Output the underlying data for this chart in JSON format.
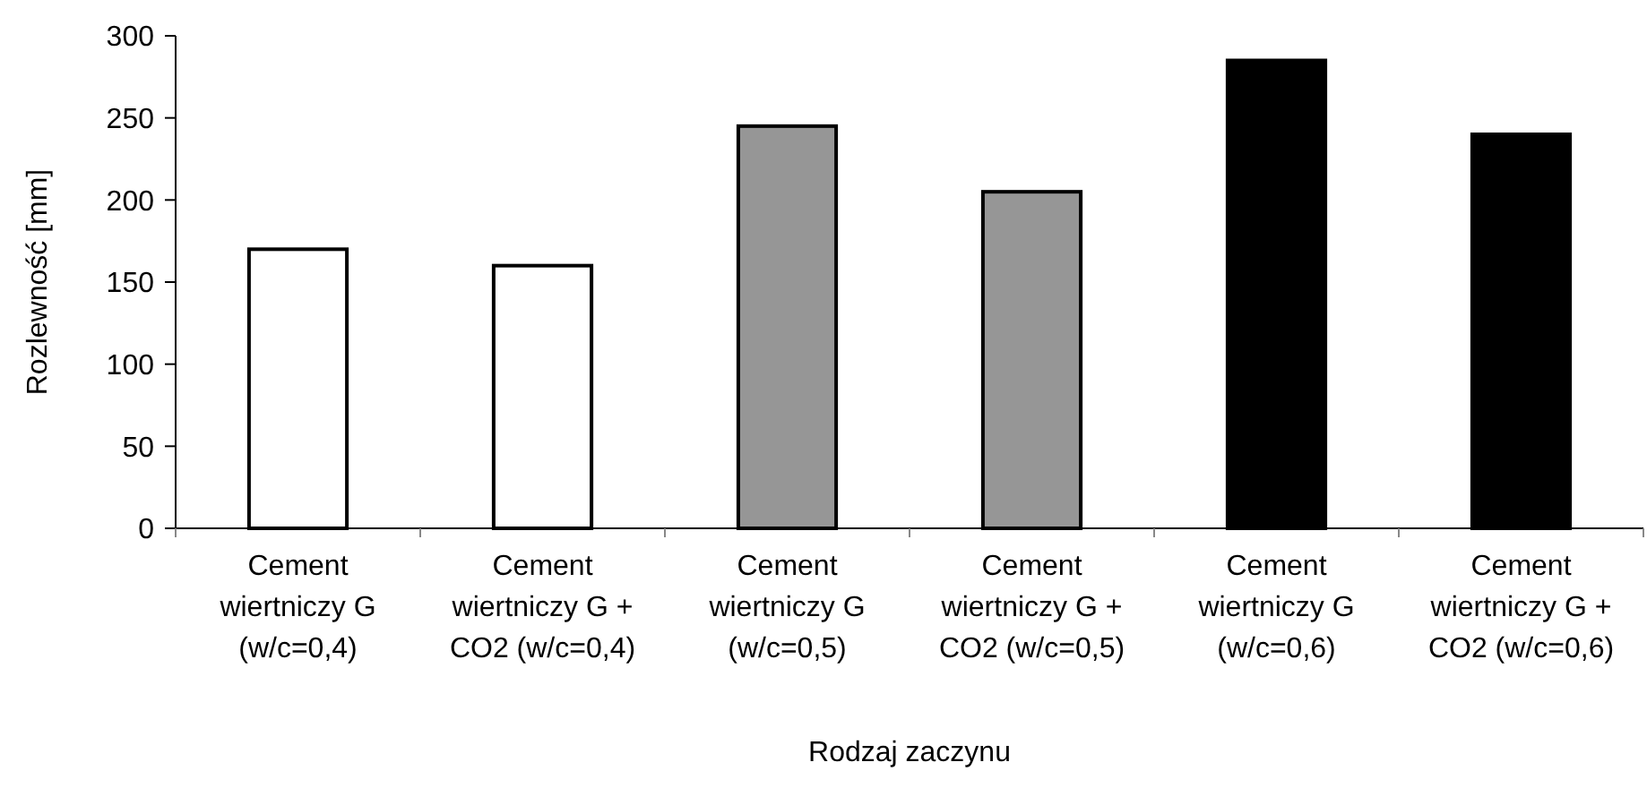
{
  "chart_data": {
    "type": "bar",
    "xlabel": "Rodzaj zaczynu",
    "ylabel": "Rozlewność [mm]",
    "categories": [
      "Cement wiertniczy G (w/c=0,4)",
      "Cement wiertniczy G + CO2 (w/c=0,4)",
      "Cement wiertniczy G (w/c=0,5)",
      "Cement wiertniczy G + CO2 (w/c=0,5)",
      "Cement wiertniczy G (w/c=0,6)",
      "Cement wiertniczy G + CO2 (w/c=0,6)"
    ],
    "values": [
      170,
      160,
      245,
      205,
      285,
      240
    ],
    "colors": [
      "#ffffff",
      "#ffffff",
      "#969696",
      "#969696",
      "#000000",
      "#000000"
    ],
    "ylim": [
      0,
      300
    ],
    "yticks": [
      0,
      50,
      100,
      150,
      200,
      250,
      300
    ],
    "grid": false
  }
}
